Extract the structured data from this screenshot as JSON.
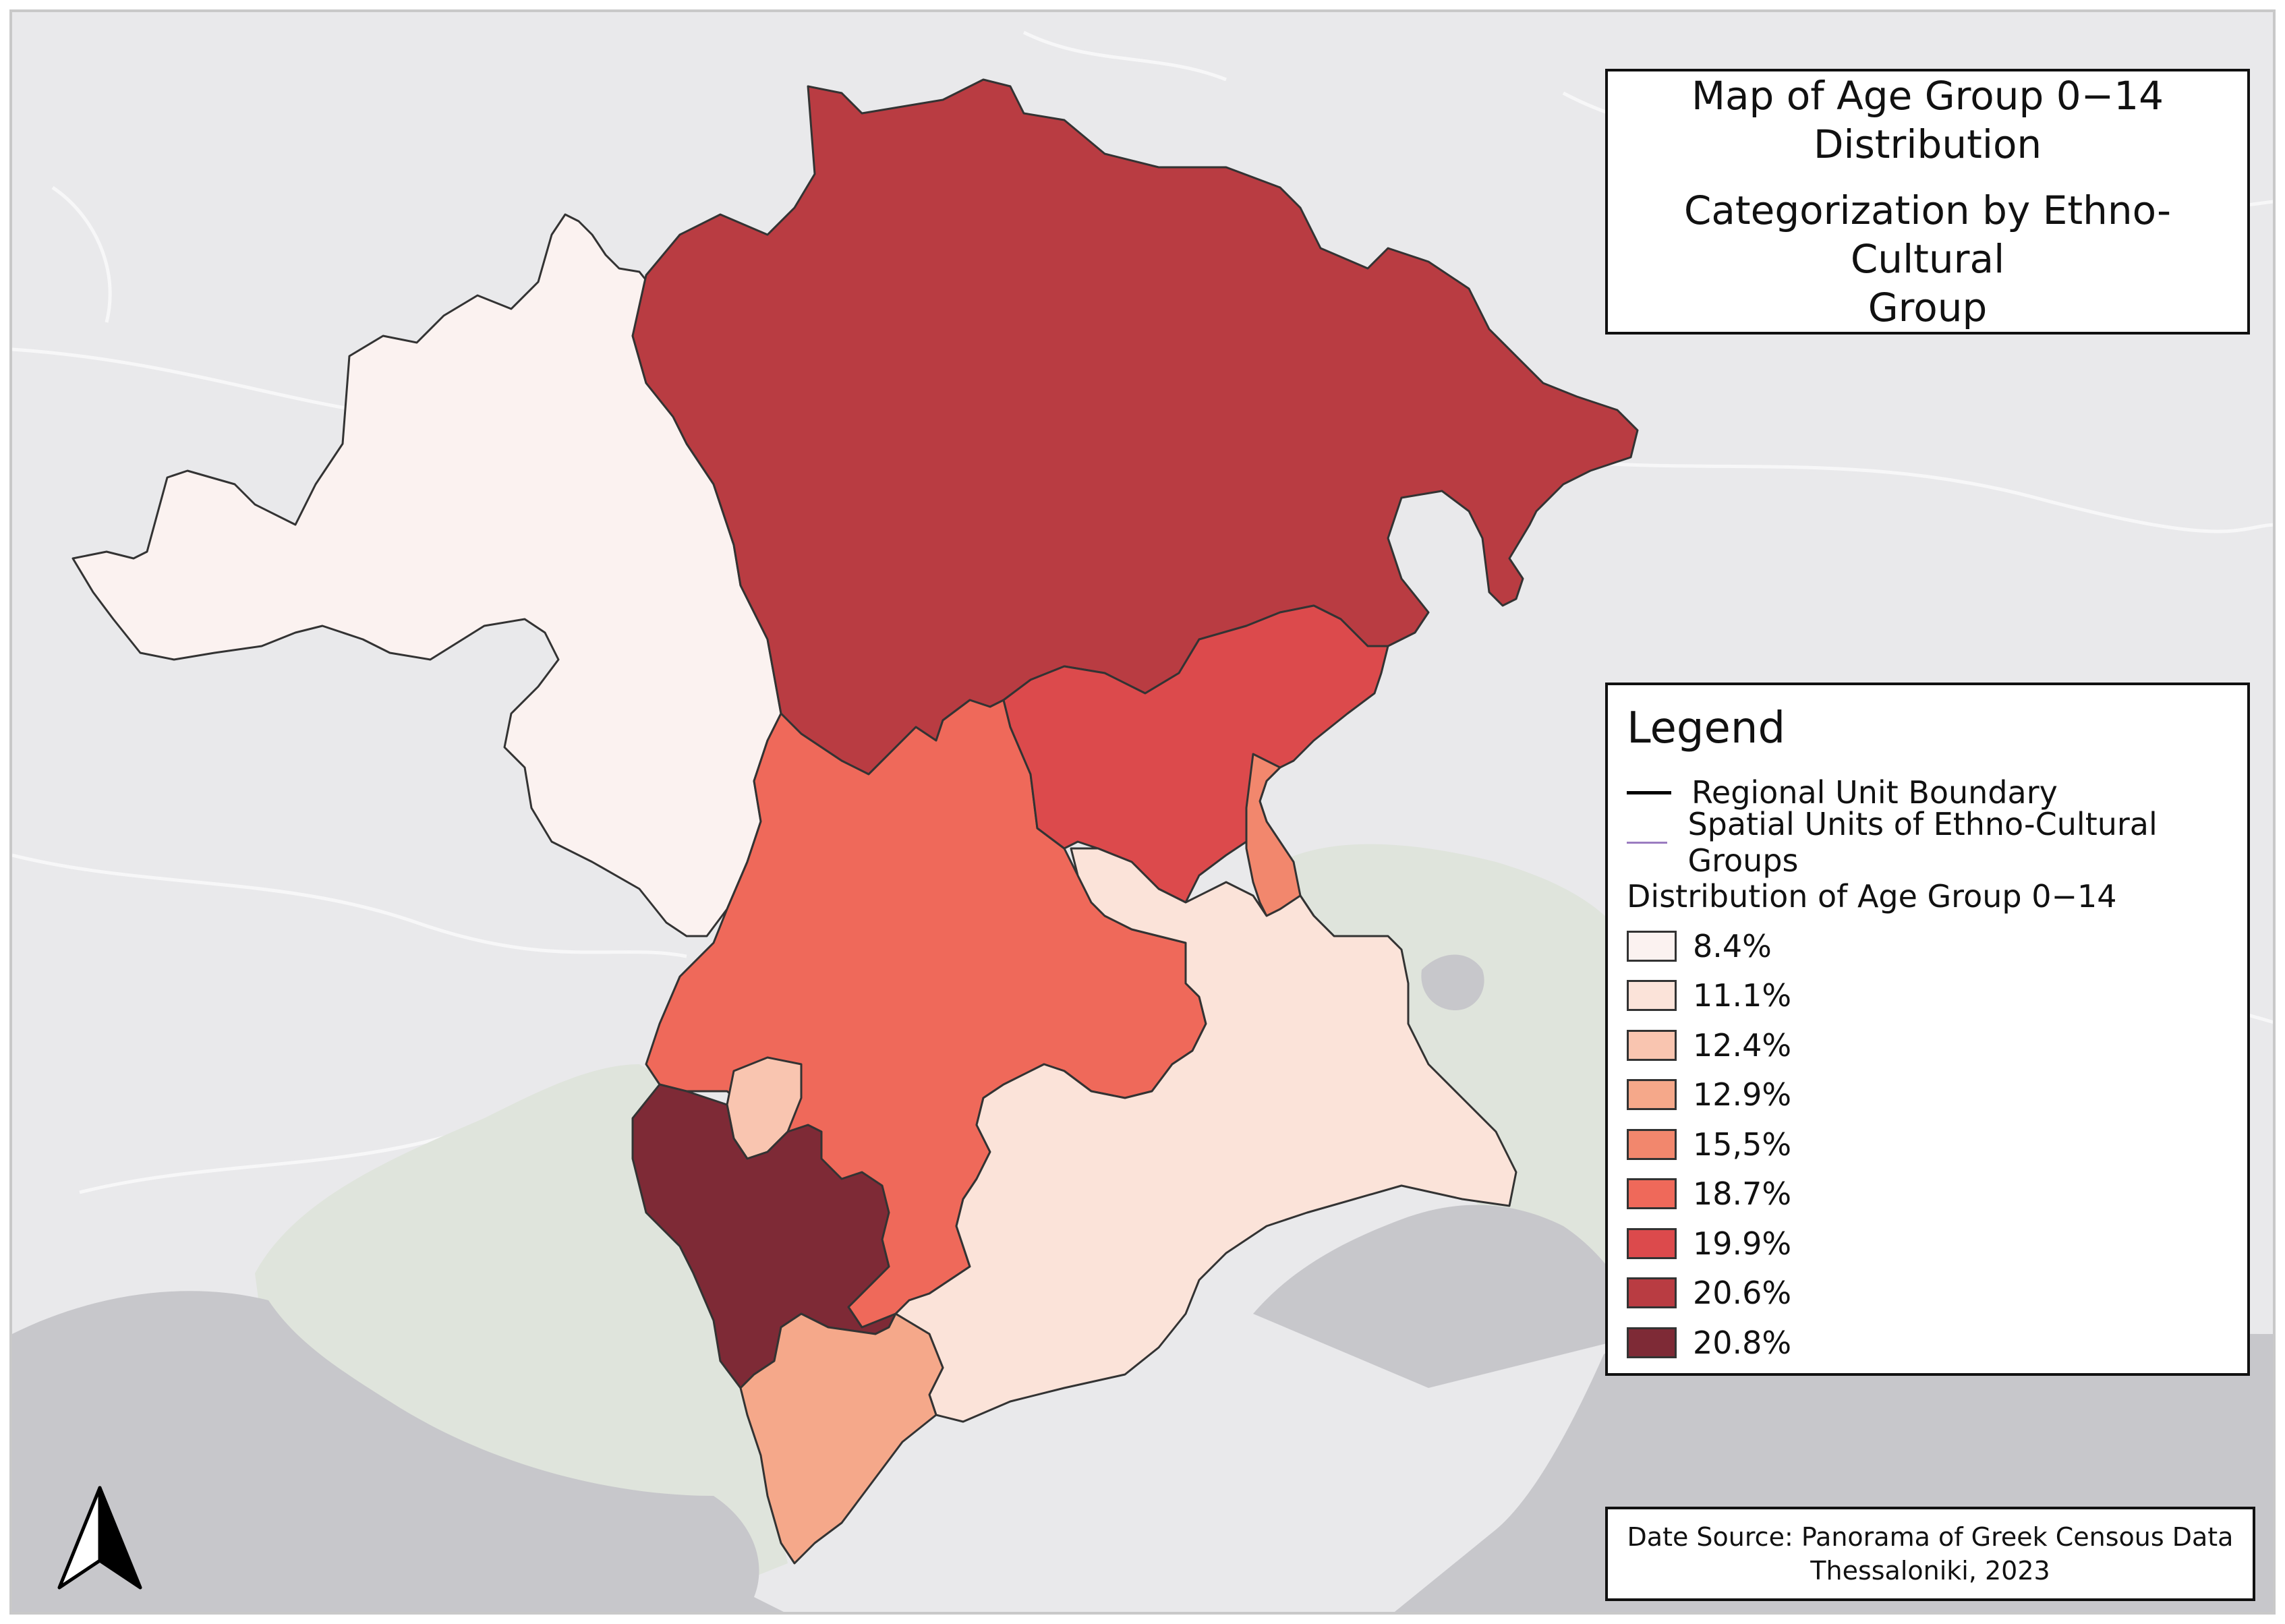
{
  "title": {
    "line1": "Map of Age Group 0−14",
    "line2": "Distribution",
    "line3": "Categorization by Ethno-Cultural",
    "line4": "Group"
  },
  "legend": {
    "title": "Legend",
    "boundary_label": "Regional Unit Boundary",
    "spatial_units_label": "Spatial Units of Ethno-Cultural Groups",
    "distribution_title": "Distribution of Age Group 0−14",
    "classes": [
      {
        "label": "8.4%",
        "value": 8.4,
        "color": "#fbf2f0"
      },
      {
        "label": "11.1%",
        "value": 11.1,
        "color": "#fbe3d9"
      },
      {
        "label": "12.4%",
        "value": 12.4,
        "color": "#f9c5b0"
      },
      {
        "label": "12.9%",
        "value": 12.9,
        "color": "#f5a88a"
      },
      {
        "label": "15,5%",
        "value": 15.5,
        "color": "#f2876d"
      },
      {
        "label": "18.7%",
        "value": 18.7,
        "color": "#ef695a"
      },
      {
        "label": "19.9%",
        "value": 19.9,
        "color": "#dc4a4c"
      },
      {
        "label": "20.6%",
        "value": 20.6,
        "color": "#b93c42"
      },
      {
        "label": "20.8%",
        "value": 20.8,
        "color": "#7e2a36"
      }
    ]
  },
  "source": {
    "line1": "Date Source: Panorama of Greek Censous Data",
    "line2": "Thessaloniki, 2023"
  },
  "colors": {
    "background": "#e9e9eb",
    "sea": "#c7c7cb",
    "green_area": "#dfe4dc",
    "boundary": "#333333",
    "spatial_units_line": "#9b7cc0"
  }
}
